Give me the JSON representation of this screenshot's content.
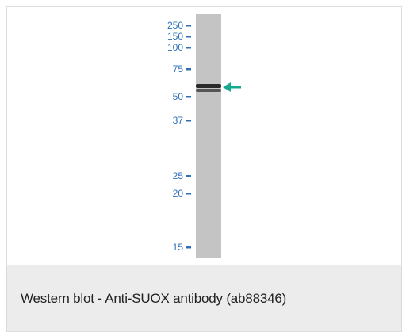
{
  "figure": {
    "markers": [
      {
        "label": "250",
        "kda": 250
      },
      {
        "label": "150",
        "kda": 150
      },
      {
        "label": "100",
        "kda": 100
      },
      {
        "label": "75",
        "kda": 75
      },
      {
        "label": "50",
        "kda": 50
      },
      {
        "label": "37",
        "kda": 37
      },
      {
        "label": "25",
        "kda": 25
      },
      {
        "label": "20",
        "kda": 20
      },
      {
        "label": "15",
        "kda": 15
      }
    ],
    "band_kda": 55,
    "colors": {
      "marker_text": "#2f6fb7",
      "lane": "#c4c4c4",
      "band": "#2a2a2a",
      "arrow": "#17a98f"
    },
    "arrow_icon": "arrow-left-icon"
  },
  "caption": {
    "text": "Western blot - Anti-SUOX antibody (ab88346)"
  }
}
